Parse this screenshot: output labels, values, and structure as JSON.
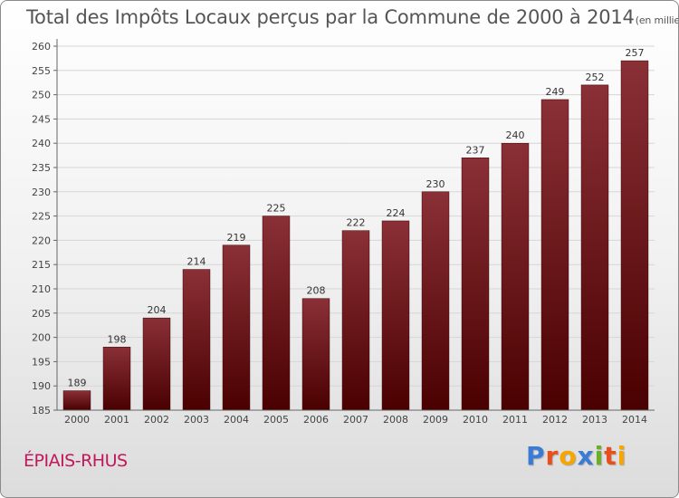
{
  "title": "Total des Impôts Locaux perçus par la Commune de 2000 à 2014",
  "title_unit": "(en milliers d'€)",
  "commune": "ÉPIAIS-RHUS",
  "logo": {
    "letters": [
      "P",
      "r",
      "o",
      "x",
      "i",
      "t",
      "i"
    ],
    "colors": [
      "#3a7bd5",
      "#e94e1b",
      "#f7a600",
      "#3a7bd5",
      "#6ab023",
      "#e94e1b",
      "#f7a600"
    ]
  },
  "colors": {
    "bar_top": "#8a3036",
    "bar_bottom": "#4a0000",
    "commune": "#c2185b"
  },
  "chart_data": {
    "type": "bar",
    "title": "Total des Impôts Locaux perçus par la Commune de 2000 à 2014",
    "xlabel": "",
    "ylabel": "",
    "categories": [
      "2000",
      "2001",
      "2002",
      "2003",
      "2004",
      "2005",
      "2006",
      "2007",
      "2008",
      "2009",
      "2010",
      "2011",
      "2012",
      "2013",
      "2014"
    ],
    "values": [
      189,
      198,
      204,
      214,
      219,
      225,
      208,
      222,
      224,
      230,
      237,
      240,
      249,
      252,
      257
    ],
    "ylim": [
      185,
      260
    ],
    "yticks": [
      185,
      190,
      195,
      200,
      205,
      210,
      215,
      220,
      225,
      230,
      235,
      240,
      245,
      250,
      255,
      260
    ],
    "grid": true
  }
}
